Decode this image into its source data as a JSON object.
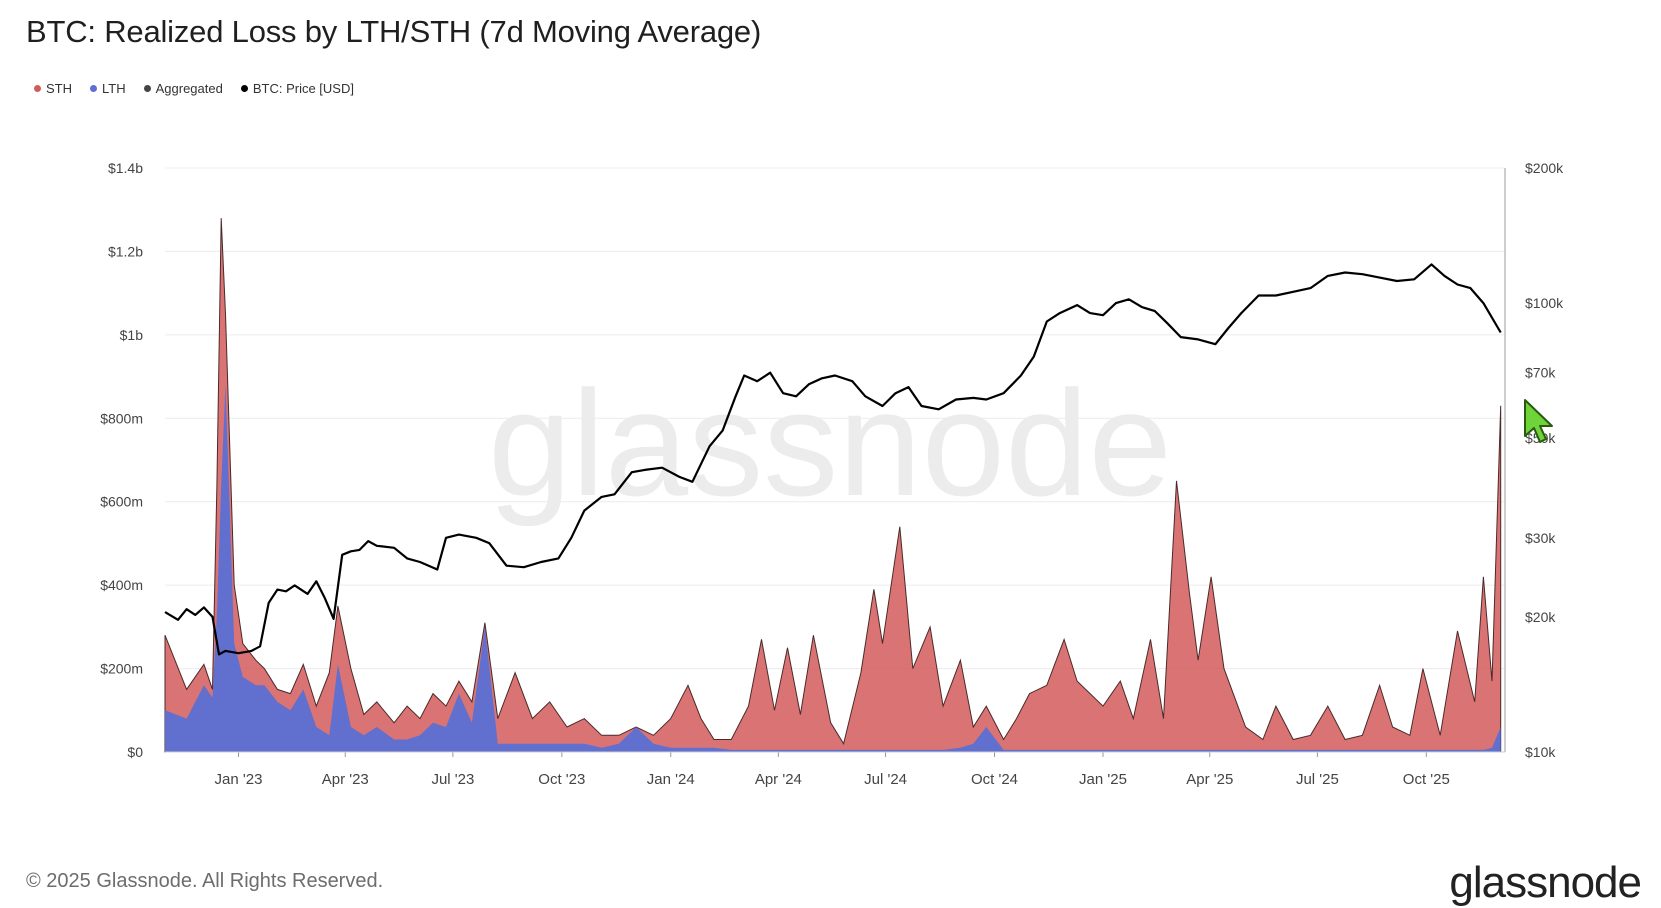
{
  "title": "BTC: Realized Loss by LTH/STH (7d Moving Average)",
  "legend": [
    {
      "label": "STH",
      "color": "#d45b5b"
    },
    {
      "label": "LTH",
      "color": "#5b6fd4"
    },
    {
      "label": "Aggregated",
      "color": "#444444"
    },
    {
      "label": "BTC: Price [USD]",
      "color": "#000000"
    }
  ],
  "watermark": "glassnode",
  "footer": "© 2025 Glassnode. All Rights Reserved.",
  "brand": "glassnode",
  "cursor_icon": "mouse-pointer-icon",
  "chart_data": {
    "type": "area",
    "x_tick_labels": [
      "Jan '23",
      "Apr '23",
      "Jul '23",
      "Oct '23",
      "Jan '24",
      "Apr '24",
      "Jul '24",
      "Oct '24",
      "Jan '25",
      "Apr '25",
      "Jul '25",
      "Oct '25"
    ],
    "left_axis": {
      "tick_labels": [
        "$0",
        "$200m",
        "$400m",
        "$600m",
        "$800m",
        "$1b",
        "$1.2b",
        "$1.4b"
      ],
      "ticks": [
        0,
        200,
        400,
        600,
        800,
        1000,
        1200,
        1400
      ],
      "ylim": [
        0,
        1400
      ],
      "unit": "million USD"
    },
    "right_axis": {
      "scale": "log",
      "tick_labels": [
        "$10k",
        "$20k",
        "$30k",
        "$50k",
        "$70k",
        "$100k",
        "$200k"
      ],
      "ticks": [
        10000,
        20000,
        30000,
        50000,
        70000,
        100000,
        200000
      ],
      "ylim": [
        10000,
        200000
      ]
    },
    "grid": true,
    "series": [
      {
        "name": "STH",
        "axis": "left",
        "color": "#d45b5b",
        "values": [
          [
            2022.83,
            280
          ],
          [
            2022.88,
            150
          ],
          [
            2022.92,
            210
          ],
          [
            2022.94,
            150
          ],
          [
            2022.95,
            640
          ],
          [
            2022.96,
            1280
          ],
          [
            2022.97,
            1050
          ],
          [
            2022.99,
            400
          ],
          [
            2023.01,
            260
          ],
          [
            2023.04,
            220
          ],
          [
            2023.06,
            200
          ],
          [
            2023.09,
            150
          ],
          [
            2023.12,
            140
          ],
          [
            2023.15,
            210
          ],
          [
            2023.18,
            110
          ],
          [
            2023.21,
            190
          ],
          [
            2023.23,
            350
          ],
          [
            2023.26,
            200
          ],
          [
            2023.29,
            90
          ],
          [
            2023.32,
            120
          ],
          [
            2023.36,
            70
          ],
          [
            2023.39,
            110
          ],
          [
            2023.42,
            80
          ],
          [
            2023.45,
            140
          ],
          [
            2023.48,
            110
          ],
          [
            2023.51,
            170
          ],
          [
            2023.54,
            120
          ],
          [
            2023.57,
            310
          ],
          [
            2023.6,
            80
          ],
          [
            2023.64,
            190
          ],
          [
            2023.68,
            80
          ],
          [
            2023.72,
            120
          ],
          [
            2023.76,
            60
          ],
          [
            2023.8,
            80
          ],
          [
            2023.84,
            40
          ],
          [
            2023.88,
            40
          ],
          [
            2023.92,
            60
          ],
          [
            2023.96,
            40
          ],
          [
            2024.0,
            80
          ],
          [
            2024.04,
            160
          ],
          [
            2024.07,
            80
          ],
          [
            2024.1,
            30
          ],
          [
            2024.14,
            30
          ],
          [
            2024.18,
            110
          ],
          [
            2024.21,
            270
          ],
          [
            2024.24,
            100
          ],
          [
            2024.27,
            250
          ],
          [
            2024.3,
            90
          ],
          [
            2024.33,
            280
          ],
          [
            2024.37,
            70
          ],
          [
            2024.4,
            20
          ],
          [
            2024.44,
            190
          ],
          [
            2024.47,
            390
          ],
          [
            2024.49,
            260
          ],
          [
            2024.53,
            540
          ],
          [
            2024.56,
            200
          ],
          [
            2024.6,
            300
          ],
          [
            2024.63,
            110
          ],
          [
            2024.67,
            220
          ],
          [
            2024.7,
            60
          ],
          [
            2024.73,
            110
          ],
          [
            2024.77,
            30
          ],
          [
            2024.8,
            80
          ],
          [
            2024.83,
            140
          ],
          [
            2024.87,
            160
          ],
          [
            2024.91,
            270
          ],
          [
            2024.94,
            170
          ],
          [
            2025.0,
            110
          ],
          [
            2025.04,
            170
          ],
          [
            2025.07,
            80
          ],
          [
            2025.11,
            270
          ],
          [
            2025.14,
            80
          ],
          [
            2025.17,
            650
          ],
          [
            2025.2,
            380
          ],
          [
            2025.22,
            220
          ],
          [
            2025.25,
            420
          ],
          [
            2025.28,
            200
          ],
          [
            2025.33,
            60
          ],
          [
            2025.37,
            30
          ],
          [
            2025.4,
            110
          ],
          [
            2025.44,
            30
          ],
          [
            2025.48,
            40
          ],
          [
            2025.52,
            110
          ],
          [
            2025.56,
            30
          ],
          [
            2025.6,
            40
          ],
          [
            2025.64,
            160
          ],
          [
            2025.67,
            60
          ],
          [
            2025.71,
            40
          ],
          [
            2025.74,
            200
          ],
          [
            2025.78,
            40
          ],
          [
            2025.82,
            290
          ],
          [
            2025.86,
            120
          ],
          [
            2025.88,
            420
          ],
          [
            2025.9,
            170
          ],
          [
            2025.92,
            830
          ]
        ]
      },
      {
        "name": "LTH",
        "axis": "left",
        "color": "#5b6fd4",
        "values": [
          [
            2022.83,
            100
          ],
          [
            2022.88,
            80
          ],
          [
            2022.92,
            160
          ],
          [
            2022.94,
            130
          ],
          [
            2022.95,
            330
          ],
          [
            2022.96,
            640
          ],
          [
            2022.97,
            880
          ],
          [
            2022.99,
            260
          ],
          [
            2023.01,
            180
          ],
          [
            2023.04,
            160
          ],
          [
            2023.06,
            160
          ],
          [
            2023.09,
            120
          ],
          [
            2023.12,
            100
          ],
          [
            2023.15,
            150
          ],
          [
            2023.18,
            60
          ],
          [
            2023.21,
            40
          ],
          [
            2023.23,
            210
          ],
          [
            2023.26,
            60
          ],
          [
            2023.29,
            40
          ],
          [
            2023.32,
            60
          ],
          [
            2023.36,
            30
          ],
          [
            2023.39,
            30
          ],
          [
            2023.42,
            40
          ],
          [
            2023.45,
            70
          ],
          [
            2023.48,
            60
          ],
          [
            2023.51,
            140
          ],
          [
            2023.54,
            70
          ],
          [
            2023.57,
            300
          ],
          [
            2023.6,
            20
          ],
          [
            2023.64,
            20
          ],
          [
            2023.68,
            20
          ],
          [
            2023.72,
            20
          ],
          [
            2023.76,
            20
          ],
          [
            2023.8,
            20
          ],
          [
            2023.84,
            10
          ],
          [
            2023.88,
            20
          ],
          [
            2023.92,
            60
          ],
          [
            2023.96,
            20
          ],
          [
            2024.0,
            10
          ],
          [
            2024.04,
            10
          ],
          [
            2024.07,
            10
          ],
          [
            2024.1,
            10
          ],
          [
            2024.14,
            5
          ],
          [
            2024.18,
            5
          ],
          [
            2024.21,
            5
          ],
          [
            2024.24,
            5
          ],
          [
            2024.27,
            5
          ],
          [
            2024.3,
            5
          ],
          [
            2024.33,
            5
          ],
          [
            2024.37,
            5
          ],
          [
            2024.4,
            5
          ],
          [
            2024.44,
            5
          ],
          [
            2024.47,
            5
          ],
          [
            2024.49,
            5
          ],
          [
            2024.53,
            5
          ],
          [
            2024.56,
            5
          ],
          [
            2024.6,
            5
          ],
          [
            2024.63,
            5
          ],
          [
            2024.67,
            10
          ],
          [
            2024.7,
            20
          ],
          [
            2024.73,
            60
          ],
          [
            2024.77,
            5
          ],
          [
            2024.8,
            5
          ],
          [
            2024.83,
            5
          ],
          [
            2024.87,
            5
          ],
          [
            2024.91,
            5
          ],
          [
            2024.94,
            5
          ],
          [
            2025.0,
            5
          ],
          [
            2025.04,
            5
          ],
          [
            2025.07,
            5
          ],
          [
            2025.11,
            5
          ],
          [
            2025.14,
            5
          ],
          [
            2025.17,
            5
          ],
          [
            2025.2,
            5
          ],
          [
            2025.22,
            5
          ],
          [
            2025.25,
            5
          ],
          [
            2025.28,
            5
          ],
          [
            2025.33,
            5
          ],
          [
            2025.37,
            5
          ],
          [
            2025.4,
            5
          ],
          [
            2025.44,
            5
          ],
          [
            2025.48,
            5
          ],
          [
            2025.52,
            5
          ],
          [
            2025.56,
            5
          ],
          [
            2025.6,
            5
          ],
          [
            2025.64,
            5
          ],
          [
            2025.67,
            5
          ],
          [
            2025.71,
            5
          ],
          [
            2025.74,
            5
          ],
          [
            2025.78,
            5
          ],
          [
            2025.82,
            5
          ],
          [
            2025.86,
            5
          ],
          [
            2025.88,
            5
          ],
          [
            2025.9,
            10
          ],
          [
            2025.92,
            60
          ]
        ]
      },
      {
        "name": "BTC: Price [USD]",
        "axis": "right",
        "color": "#000000",
        "values": [
          [
            2022.83,
            20500
          ],
          [
            2022.86,
            19700
          ],
          [
            2022.88,
            20800
          ],
          [
            2022.9,
            20200
          ],
          [
            2022.92,
            21000
          ],
          [
            2022.94,
            20000
          ],
          [
            2022.955,
            16500
          ],
          [
            2022.97,
            16800
          ],
          [
            2023.0,
            16600
          ],
          [
            2023.03,
            16800
          ],
          [
            2023.05,
            17200
          ],
          [
            2023.07,
            21500
          ],
          [
            2023.09,
            23000
          ],
          [
            2023.11,
            22800
          ],
          [
            2023.13,
            23500
          ],
          [
            2023.16,
            22500
          ],
          [
            2023.18,
            24000
          ],
          [
            2023.2,
            22000
          ],
          [
            2023.22,
            19800
          ],
          [
            2023.24,
            27500
          ],
          [
            2023.26,
            28000
          ],
          [
            2023.28,
            28200
          ],
          [
            2023.3,
            29500
          ],
          [
            2023.32,
            28800
          ],
          [
            2023.36,
            28500
          ],
          [
            2023.39,
            27000
          ],
          [
            2023.42,
            26500
          ],
          [
            2023.46,
            25500
          ],
          [
            2023.48,
            30000
          ],
          [
            2023.51,
            30500
          ],
          [
            2023.55,
            30000
          ],
          [
            2023.58,
            29200
          ],
          [
            2023.62,
            26000
          ],
          [
            2023.66,
            25800
          ],
          [
            2023.7,
            26500
          ],
          [
            2023.74,
            27000
          ],
          [
            2023.77,
            30000
          ],
          [
            2023.8,
            34500
          ],
          [
            2023.84,
            37000
          ],
          [
            2023.87,
            37500
          ],
          [
            2023.91,
            42000
          ],
          [
            2023.94,
            42500
          ],
          [
            2023.98,
            43000
          ],
          [
            2024.02,
            41000
          ],
          [
            2024.05,
            40000
          ],
          [
            2024.09,
            48000
          ],
          [
            2024.12,
            52000
          ],
          [
            2024.15,
            62000
          ],
          [
            2024.17,
            69000
          ],
          [
            2024.2,
            67000
          ],
          [
            2024.23,
            70000
          ],
          [
            2024.26,
            63000
          ],
          [
            2024.29,
            62000
          ],
          [
            2024.32,
            66000
          ],
          [
            2024.35,
            68000
          ],
          [
            2024.38,
            69000
          ],
          [
            2024.42,
            67000
          ],
          [
            2024.45,
            62000
          ],
          [
            2024.49,
            59000
          ],
          [
            2024.52,
            63000
          ],
          [
            2024.55,
            65000
          ],
          [
            2024.58,
            59000
          ],
          [
            2024.62,
            58000
          ],
          [
            2024.66,
            61000
          ],
          [
            2024.7,
            61500
          ],
          [
            2024.73,
            61000
          ],
          [
            2024.77,
            63000
          ],
          [
            2024.81,
            69000
          ],
          [
            2024.84,
            76000
          ],
          [
            2024.87,
            91000
          ],
          [
            2024.9,
            95000
          ],
          [
            2024.94,
            99000
          ],
          [
            2024.97,
            95000
          ],
          [
            2025.0,
            94000
          ],
          [
            2025.03,
            100000
          ],
          [
            2025.06,
            102000
          ],
          [
            2025.09,
            98000
          ],
          [
            2025.12,
            96000
          ],
          [
            2025.15,
            90000
          ],
          [
            2025.18,
            84000
          ],
          [
            2025.22,
            83000
          ],
          [
            2025.26,
            81000
          ],
          [
            2025.29,
            88000
          ],
          [
            2025.32,
            95000
          ],
          [
            2025.36,
            104000
          ],
          [
            2025.4,
            104000
          ],
          [
            2025.44,
            106000
          ],
          [
            2025.48,
            108000
          ],
          [
            2025.52,
            115000
          ],
          [
            2025.56,
            117000
          ],
          [
            2025.6,
            116000
          ],
          [
            2025.64,
            114000
          ],
          [
            2025.68,
            112000
          ],
          [
            2025.72,
            113000
          ],
          [
            2025.76,
            122000
          ],
          [
            2025.79,
            115000
          ],
          [
            2025.82,
            110000
          ],
          [
            2025.85,
            108000
          ],
          [
            2025.88,
            100000
          ],
          [
            2025.92,
            86000
          ]
        ]
      }
    ]
  }
}
